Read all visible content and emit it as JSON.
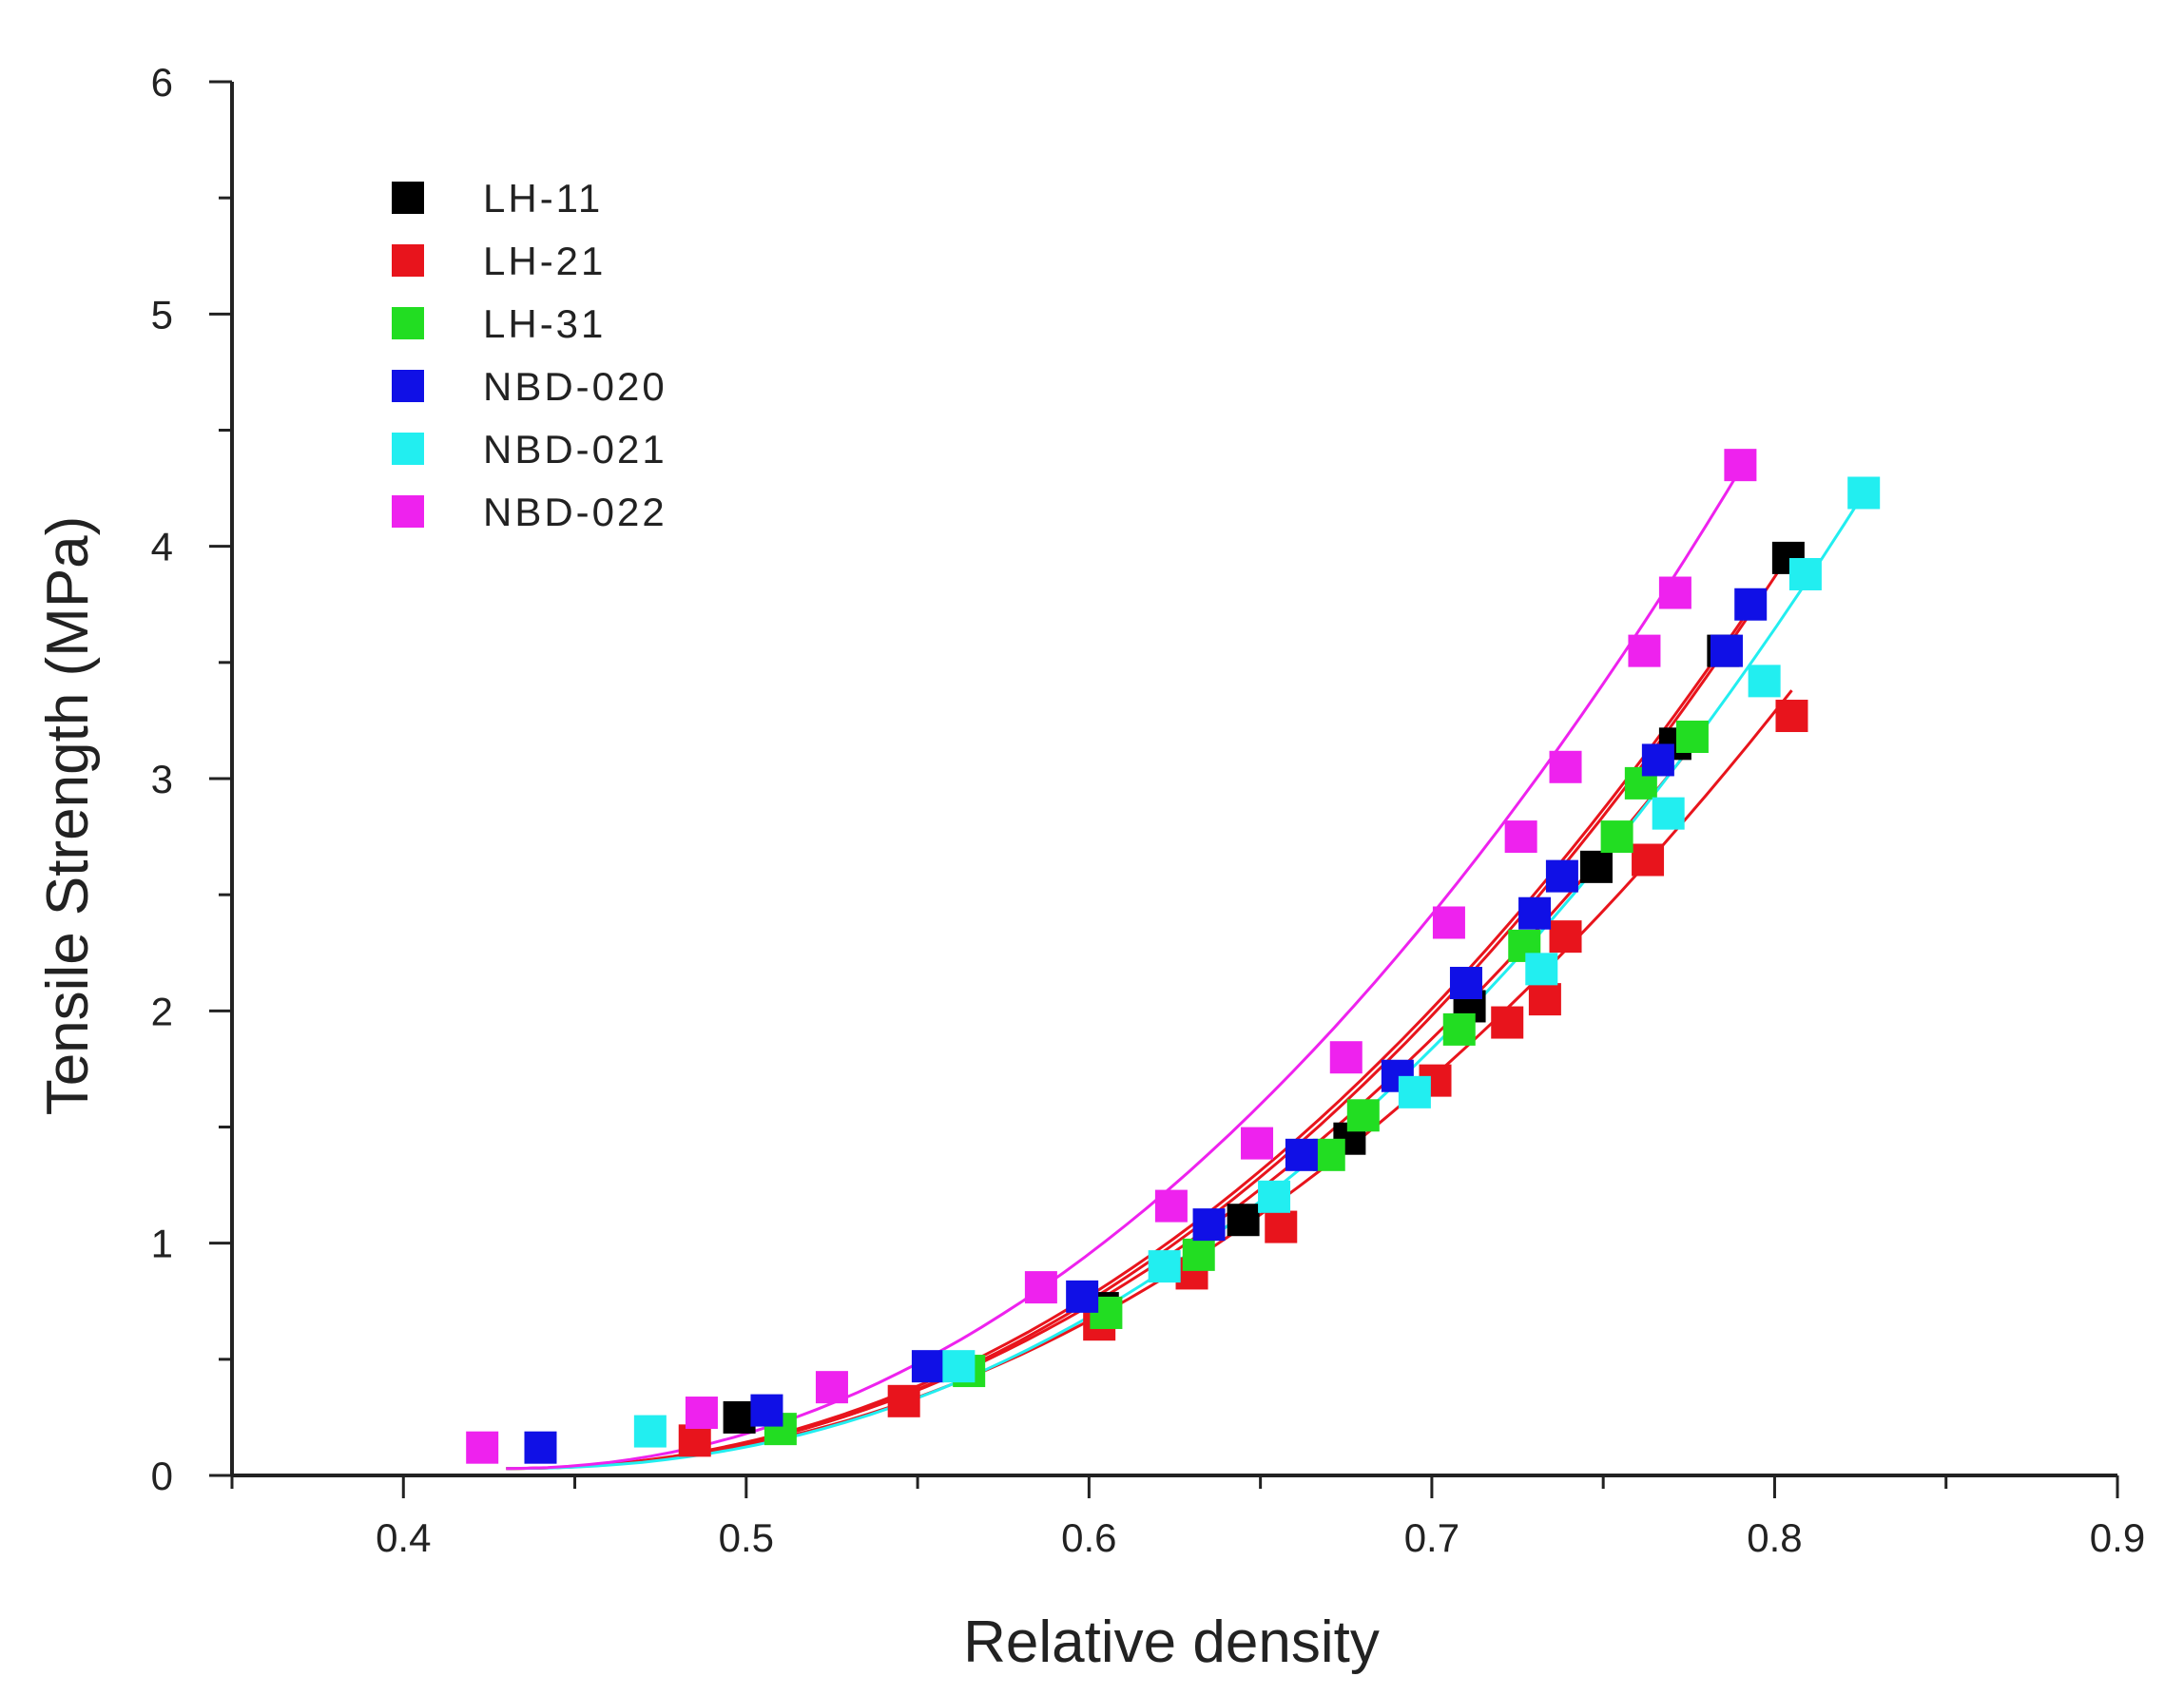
{
  "chart_data": {
    "type": "scatter",
    "title": "",
    "xlabel": "Relative density",
    "ylabel": "Tensile Strength (MPa)",
    "xlim": [
      0.35,
      0.9
    ],
    "ylim": [
      0,
      6
    ],
    "xticks": [
      0.4,
      0.5,
      0.6,
      0.7,
      0.8,
      0.9
    ],
    "xtick_labels": [
      "0.4",
      "0.5",
      "0.6",
      "0.7",
      "0.8",
      "0.9"
    ],
    "yticks": [
      0,
      1,
      2,
      3,
      4,
      5,
      6
    ],
    "ytick_labels": [
      "0",
      "1",
      "2",
      "3",
      "4",
      "5",
      "6"
    ],
    "grid": false,
    "legend_position": "top-left",
    "fit_line_color": "#e8141c",
    "series": [
      {
        "name": "LH-11",
        "color": "#000000",
        "fit_color": "#e8141c",
        "x": [
          0.498,
          0.604,
          0.645,
          0.676,
          0.711,
          0.748,
          0.771,
          0.785,
          0.804
        ],
        "y": [
          0.25,
          0.72,
          1.1,
          1.45,
          2.02,
          2.62,
          3.15,
          3.55,
          3.95
        ]
      },
      {
        "name": "LH-21",
        "color": "#e8141c",
        "fit_color": "#e8141c",
        "x": [
          0.485,
          0.546,
          0.603,
          0.63,
          0.656,
          0.701,
          0.722,
          0.733,
          0.739,
          0.763,
          0.805
        ],
        "y": [
          0.15,
          0.32,
          0.65,
          0.87,
          1.07,
          1.7,
          1.95,
          2.05,
          2.32,
          2.65,
          3.27
        ]
      },
      {
        "name": "LH-31",
        "color": "#22dd22",
        "fit_color": "#e8141c",
        "x": [
          0.51,
          0.565,
          0.605,
          0.632,
          0.67,
          0.68,
          0.708,
          0.727,
          0.754,
          0.761,
          0.776
        ],
        "y": [
          0.2,
          0.45,
          0.7,
          0.95,
          1.38,
          1.55,
          1.92,
          2.28,
          2.75,
          2.98,
          3.18
        ]
      },
      {
        "name": "NBD-020",
        "color": "#1010e6",
        "fit_color": "#e8141c",
        "x": [
          0.44,
          0.506,
          0.553,
          0.598,
          0.635,
          0.662,
          0.69,
          0.71,
          0.73,
          0.738,
          0.766,
          0.786,
          0.793
        ],
        "y": [
          0.12,
          0.28,
          0.47,
          0.77,
          1.08,
          1.38,
          1.72,
          2.12,
          2.42,
          2.58,
          3.08,
          3.55,
          3.75
        ]
      },
      {
        "name": "NBD-021",
        "color": "#22eef0",
        "fit_color": "#22eef0",
        "x": [
          0.472,
          0.562,
          0.622,
          0.654,
          0.695,
          0.732,
          0.769,
          0.797,
          0.809,
          0.826
        ],
        "y": [
          0.19,
          0.47,
          0.9,
          1.2,
          1.65,
          2.18,
          2.85,
          3.42,
          3.88,
          4.23
        ]
      },
      {
        "name": "NBD-022",
        "color": "#ee22ee",
        "fit_color": "#ee22ee",
        "x": [
          0.423,
          0.487,
          0.525,
          0.586,
          0.624,
          0.649,
          0.675,
          0.705,
          0.726,
          0.739,
          0.762,
          0.771,
          0.79
        ],
        "y": [
          0.12,
          0.27,
          0.38,
          0.81,
          1.16,
          1.43,
          1.8,
          2.38,
          2.75,
          3.05,
          3.55,
          3.8,
          4.35
        ]
      }
    ],
    "fits": [
      {
        "name": "LH-11 fit",
        "color": "#e8141c",
        "x": [
          0.43,
          0.805
        ],
        "a": 0.0,
        "p": [
          0.43,
          0.03,
          3.98
        ],
        "exp": 2.15
      },
      {
        "name": "LH-21 fit",
        "color": "#e8141c",
        "x": [
          0.43,
          0.805
        ],
        "p": [
          0.43,
          0.03,
          3.38
        ],
        "exp": 2.1
      },
      {
        "name": "LH-31 fit",
        "color": "#e8141c",
        "x": [
          0.43,
          0.78
        ],
        "p": [
          0.43,
          0.03,
          3.22
        ],
        "exp": 2.1
      },
      {
        "name": "NBD-020 fit",
        "color": "#e8141c",
        "x": [
          0.43,
          0.795
        ],
        "p": [
          0.43,
          0.03,
          3.78
        ],
        "exp": 2.12
      },
      {
        "name": "NBD-021 fit",
        "color": "#22eef0",
        "x": [
          0.43,
          0.827
        ],
        "p": [
          0.43,
          0.03,
          4.25
        ],
        "exp": 2.2
      },
      {
        "name": "NBD-022 fit",
        "color": "#ee22ee",
        "x": [
          0.43,
          0.792
        ],
        "p": [
          0.43,
          0.03,
          4.38
        ],
        "exp": 2.05
      }
    ]
  }
}
